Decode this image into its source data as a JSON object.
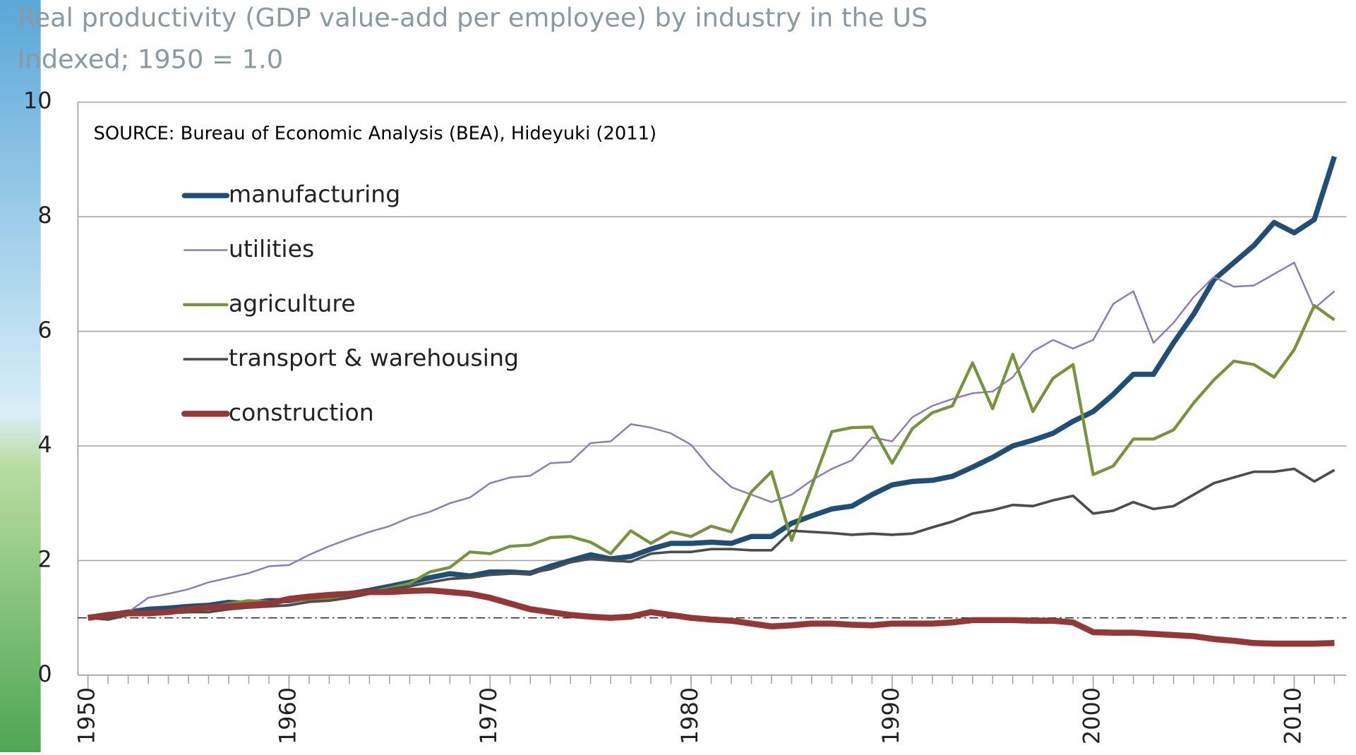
{
  "chart_data": {
    "type": "line",
    "title": "Real productivity (GDP value-add per employee) by industry in the US",
    "subtitle": "Indexed; 1950 = 1.0",
    "annotation": "SOURCE: Bureau of Economic Analysis (BEA), Hideyuki (2011)",
    "x": [
      1950,
      1951,
      1952,
      1953,
      1954,
      1955,
      1956,
      1957,
      1958,
      1959,
      1960,
      1961,
      1962,
      1963,
      1964,
      1965,
      1966,
      1967,
      1968,
      1969,
      1970,
      1971,
      1972,
      1973,
      1974,
      1975,
      1976,
      1977,
      1978,
      1979,
      1980,
      1981,
      1982,
      1983,
      1984,
      1985,
      1986,
      1987,
      1988,
      1989,
      1990,
      1991,
      1992,
      1993,
      1994,
      1995,
      1996,
      1997,
      1998,
      1999,
      2000,
      2001,
      2002,
      2003,
      2004,
      2005,
      2006,
      2007,
      2008,
      2009,
      2010,
      2011,
      2012
    ],
    "series": [
      {
        "name": "manufacturing",
        "color": "#1f4e79",
        "line_width": 6,
        "values": [
          1.0,
          1.05,
          1.1,
          1.15,
          1.17,
          1.2,
          1.22,
          1.27,
          1.25,
          1.3,
          1.3,
          1.35,
          1.38,
          1.42,
          1.48,
          1.55,
          1.62,
          1.7,
          1.77,
          1.73,
          1.8,
          1.8,
          1.78,
          1.9,
          2.0,
          2.1,
          2.03,
          2.07,
          2.2,
          2.3,
          2.3,
          2.32,
          2.3,
          2.42,
          2.42,
          2.65,
          2.78,
          2.9,
          2.95,
          3.15,
          3.32,
          3.38,
          3.4,
          3.47,
          3.63,
          3.8,
          4.0,
          4.1,
          4.22,
          4.43,
          4.6,
          4.9,
          5.25,
          5.25,
          5.8,
          6.3,
          6.9,
          7.2,
          7.5,
          7.9,
          7.72,
          7.95,
          9.05
        ]
      },
      {
        "name": "utilities",
        "color": "#8e7cb0",
        "line_width": 2,
        "values": [
          1.0,
          1.0,
          1.1,
          1.35,
          1.42,
          1.5,
          1.62,
          1.7,
          1.78,
          1.9,
          1.92,
          2.1,
          2.25,
          2.38,
          2.5,
          2.6,
          2.75,
          2.85,
          3.0,
          3.1,
          3.35,
          3.45,
          3.48,
          3.7,
          3.72,
          4.05,
          4.08,
          4.38,
          4.32,
          4.22,
          4.02,
          3.6,
          3.28,
          3.15,
          3.02,
          3.15,
          3.4,
          3.6,
          3.75,
          4.15,
          4.08,
          4.5,
          4.7,
          4.82,
          4.92,
          4.95,
          5.2,
          5.65,
          5.85,
          5.7,
          5.85,
          6.48,
          6.7,
          5.8,
          6.15,
          6.6,
          6.95,
          6.78,
          6.8,
          7.0,
          7.2,
          6.4,
          6.7
        ]
      },
      {
        "name": "agriculture",
        "color": "#77933c",
        "line_width": 3.5,
        "values": [
          1.0,
          1.05,
          1.1,
          1.05,
          1.1,
          1.15,
          1.18,
          1.25,
          1.3,
          1.28,
          1.3,
          1.32,
          1.35,
          1.38,
          1.45,
          1.52,
          1.6,
          1.8,
          1.88,
          2.15,
          2.12,
          2.25,
          2.27,
          2.4,
          2.42,
          2.32,
          2.12,
          2.52,
          2.3,
          2.5,
          2.42,
          2.6,
          2.5,
          3.2,
          3.55,
          2.35,
          3.3,
          4.25,
          4.32,
          4.33,
          3.7,
          4.3,
          4.58,
          4.7,
          5.45,
          4.65,
          5.6,
          4.6,
          5.18,
          5.42,
          3.5,
          3.65,
          4.12,
          4.12,
          4.28,
          4.75,
          5.15,
          5.48,
          5.42,
          5.2,
          5.68,
          6.45,
          6.2
        ]
      },
      {
        "name": "transport & warehousing",
        "color": "#4d4d4d",
        "line_width": 3,
        "values": [
          1.0,
          0.97,
          1.05,
          1.05,
          1.08,
          1.1,
          1.1,
          1.15,
          1.18,
          1.2,
          1.22,
          1.28,
          1.3,
          1.35,
          1.42,
          1.5,
          1.55,
          1.62,
          1.68,
          1.7,
          1.75,
          1.77,
          1.78,
          1.85,
          1.97,
          2.03,
          2.0,
          1.98,
          2.12,
          2.15,
          2.15,
          2.2,
          2.2,
          2.18,
          2.18,
          2.52,
          2.5,
          2.48,
          2.45,
          2.47,
          2.45,
          2.47,
          2.58,
          2.68,
          2.82,
          2.88,
          2.97,
          2.95,
          3.05,
          3.13,
          2.82,
          2.87,
          3.02,
          2.9,
          2.95,
          3.15,
          3.35,
          3.45,
          3.55,
          3.55,
          3.6,
          3.38,
          3.58
        ]
      },
      {
        "name": "construction",
        "color": "#953735",
        "line_width": 7,
        "values": [
          1.0,
          1.05,
          1.08,
          1.08,
          1.1,
          1.15,
          1.18,
          1.2,
          1.22,
          1.25,
          1.33,
          1.37,
          1.4,
          1.42,
          1.45,
          1.45,
          1.47,
          1.48,
          1.45,
          1.42,
          1.35,
          1.25,
          1.15,
          1.1,
          1.05,
          1.02,
          1.0,
          1.02,
          1.1,
          1.05,
          1.0,
          0.97,
          0.95,
          0.9,
          0.85,
          0.87,
          0.9,
          0.9,
          0.88,
          0.87,
          0.9,
          0.9,
          0.9,
          0.92,
          0.96,
          0.96,
          0.96,
          0.95,
          0.95,
          0.92,
          0.75,
          0.74,
          0.74,
          0.72,
          0.7,
          0.68,
          0.63,
          0.6,
          0.56,
          0.55,
          0.55,
          0.55,
          0.56
        ]
      }
    ],
    "xlim": [
      1949.5,
      2012.6
    ],
    "xticks": [
      1950,
      1960,
      1970,
      1980,
      1990,
      2000,
      2010
    ],
    "ylim": [
      0,
      10
    ],
    "yticks": [
      0,
      2,
      4,
      6,
      8,
      10
    ],
    "reference_line": 1,
    "grid": true,
    "legend": "upper left"
  }
}
